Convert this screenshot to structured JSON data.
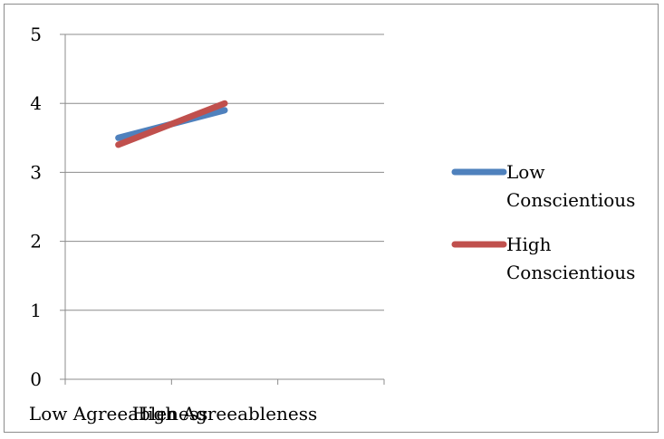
{
  "chart_data": {
    "type": "line",
    "categories": [
      "Low Agreeableness",
      "High Agreeableness"
    ],
    "ylim": [
      0,
      5
    ],
    "yticks": [
      "0",
      "1",
      "2",
      "3",
      "4",
      "5"
    ],
    "grid": true,
    "legend_position": "right",
    "series": [
      {
        "name_lines": [
          "Low",
          "Conscientious"
        ],
        "values": [
          3.5,
          3.9
        ],
        "color": "#4f81bd"
      },
      {
        "name_lines": [
          "High",
          "Conscientious"
        ],
        "values": [
          3.4,
          4.0
        ],
        "color": "#c0504d"
      }
    ]
  }
}
